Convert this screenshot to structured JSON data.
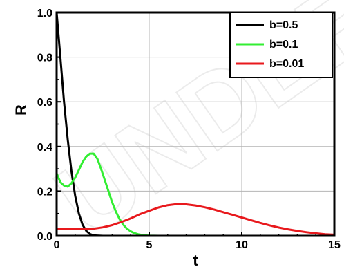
{
  "chart_data": {
    "type": "line",
    "title": "",
    "xlabel": "t",
    "ylabel": "R",
    "xlim": [
      0,
      15
    ],
    "ylim": [
      0,
      1.0
    ],
    "xticks": [
      0,
      5,
      10,
      15
    ],
    "xtick_labels": [
      "0",
      "5",
      "10",
      "15"
    ],
    "yticks": [
      0.0,
      0.2,
      0.4,
      0.6,
      0.8,
      1.0
    ],
    "ytick_labels": [
      "0.0",
      "0.2",
      "0.4",
      "0.6",
      "0.8",
      "1.0"
    ],
    "grid": true,
    "legend_position": "top-right",
    "series": [
      {
        "name": "b=0.5",
        "color": "#000000",
        "x": [
          0,
          0.2,
          0.4,
          0.6,
          0.8,
          1.0,
          1.2,
          1.4,
          1.6,
          1.8,
          2.0,
          2.5,
          3,
          5,
          10,
          15
        ],
        "y": [
          1.0,
          0.8,
          0.6,
          0.43,
          0.29,
          0.18,
          0.1,
          0.05,
          0.022,
          0.008,
          0.002,
          0.0,
          0.0,
          0.0,
          0.0,
          0.0
        ]
      },
      {
        "name": "b=0.1",
        "color": "#33ee33",
        "x": [
          0,
          0.2,
          0.4,
          0.6,
          0.8,
          1.0,
          1.2,
          1.4,
          1.6,
          1.8,
          2.0,
          2.2,
          2.4,
          2.6,
          2.8,
          3.0,
          3.2,
          3.4,
          3.6,
          3.8,
          4.0,
          4.2,
          4.4,
          4.6,
          4.8,
          5.0,
          5.5,
          6,
          10,
          15
        ],
        "y": [
          0.28,
          0.24,
          0.225,
          0.22,
          0.235,
          0.26,
          0.295,
          0.33,
          0.355,
          0.368,
          0.368,
          0.345,
          0.3,
          0.25,
          0.2,
          0.15,
          0.108,
          0.075,
          0.05,
          0.032,
          0.02,
          0.012,
          0.007,
          0.004,
          0.002,
          0.001,
          0.0,
          0.0,
          0.0,
          0.0
        ]
      },
      {
        "name": "b=0.01",
        "color": "#e8191d",
        "x": [
          0,
          1,
          2,
          2.5,
          3,
          3.5,
          4,
          4.5,
          5,
          5.5,
          6,
          6.5,
          7,
          7.5,
          8,
          8.5,
          9,
          9.5,
          10,
          10.5,
          11,
          11.5,
          12,
          12.5,
          13,
          13.5,
          14,
          14.5,
          15
        ],
        "y": [
          0.03,
          0.03,
          0.032,
          0.038,
          0.048,
          0.062,
          0.078,
          0.097,
          0.112,
          0.127,
          0.137,
          0.142,
          0.141,
          0.136,
          0.128,
          0.118,
          0.106,
          0.094,
          0.082,
          0.07,
          0.058,
          0.047,
          0.037,
          0.029,
          0.022,
          0.016,
          0.011,
          0.007,
          0.005
        ]
      }
    ]
  }
}
